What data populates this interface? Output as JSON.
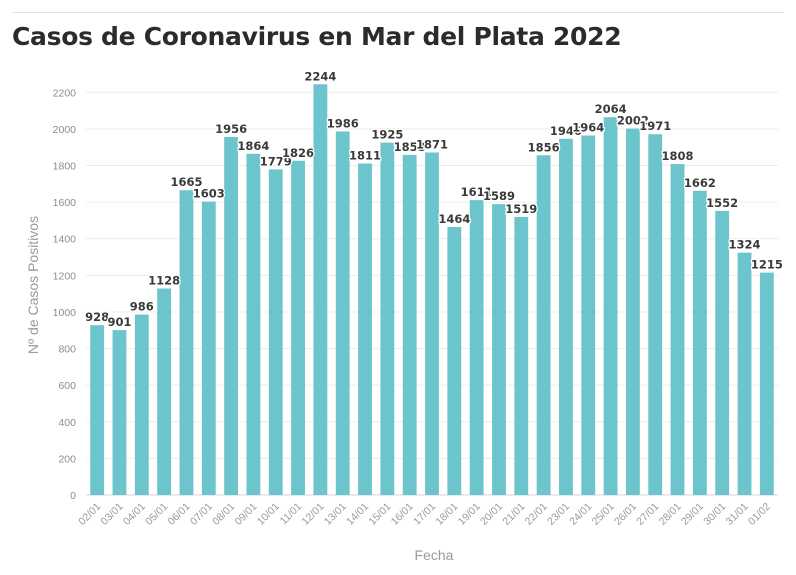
{
  "chart_data": {
    "type": "bar",
    "title": "Casos de Coronavirus en Mar del Plata 2022",
    "xlabel": "Fecha",
    "ylabel": "Nº de Casos Positivos",
    "ylim": [
      0,
      2300
    ],
    "yticks": [
      0,
      200,
      400,
      600,
      800,
      1000,
      1200,
      1400,
      1600,
      1800,
      2000,
      2200
    ],
    "grid": true,
    "bar_color": "#6cc5cc",
    "categories": [
      "02/01",
      "03/01",
      "04/01",
      "05/01",
      "06/01",
      "07/01",
      "08/01",
      "09/01",
      "10/01",
      "11/01",
      "12/01",
      "13/01",
      "14/01",
      "15/01",
      "16/01",
      "17/01",
      "18/01",
      "19/01",
      "20/01",
      "21/01",
      "22/01",
      "23/01",
      "24/01",
      "25/01",
      "26/01",
      "27/01",
      "28/01",
      "29/01",
      "30/01",
      "31/01",
      "01/02"
    ],
    "values": [
      928,
      901,
      986,
      1128,
      1665,
      1603,
      1956,
      1864,
      1779,
      1826,
      2244,
      1986,
      1811,
      1925,
      1858,
      1871,
      1464,
      1611,
      1589,
      1519,
      1856,
      1946,
      1964,
      2064,
      2002,
      1971,
      1808,
      1662,
      1552,
      1324,
      1215
    ]
  }
}
